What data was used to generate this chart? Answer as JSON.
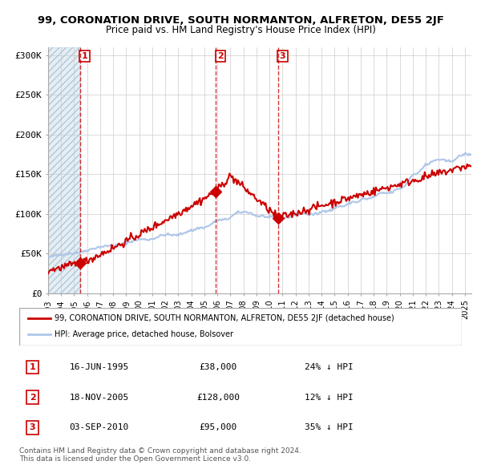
{
  "title": "99, CORONATION DRIVE, SOUTH NORMANTON, ALFRETON, DE55 2JF",
  "subtitle": "Price paid vs. HM Land Registry's House Price Index (HPI)",
  "ylabel": "",
  "ylim": [
    0,
    310000
  ],
  "yticks": [
    0,
    50000,
    100000,
    150000,
    200000,
    250000,
    300000
  ],
  "ytick_labels": [
    "£0",
    "£50K",
    "£100K",
    "£150K",
    "£200K",
    "£250K",
    "£300K"
  ],
  "hpi_color": "#aec6e8",
  "price_color": "#cc0000",
  "sale_marker_color": "#cc0000",
  "vline_color": "#cc0000",
  "background_hatch_color": "#e0e8f0",
  "grid_color": "#cccccc",
  "sales": [
    {
      "date_num": 1995.46,
      "price": 38000,
      "label": "1"
    },
    {
      "date_num": 2005.88,
      "price": 128000,
      "label": "2"
    },
    {
      "date_num": 2010.67,
      "price": 95000,
      "label": "3"
    }
  ],
  "legend_entries": [
    {
      "label": "99, CORONATION DRIVE, SOUTH NORMANTON, ALFRETON, DE55 2JF (detached house)",
      "color": "#cc0000",
      "lw": 2
    },
    {
      "label": "HPI: Average price, detached house, Bolsover",
      "color": "#aec6e8",
      "lw": 2
    }
  ],
  "table_rows": [
    {
      "num": "1",
      "date": "16-JUN-1995",
      "price": "£38,000",
      "hpi": "24% ↓ HPI"
    },
    {
      "num": "2",
      "date": "18-NOV-2005",
      "price": "£128,000",
      "hpi": "12% ↓ HPI"
    },
    {
      "num": "3",
      "date": "03-SEP-2010",
      "price": "£95,000",
      "hpi": "35% ↓ HPI"
    }
  ],
  "footer": "Contains HM Land Registry data © Crown copyright and database right 2024.\nThis data is licensed under the Open Government Licence v3.0.",
  "xmin": 1993.0,
  "xmax": 2025.5
}
